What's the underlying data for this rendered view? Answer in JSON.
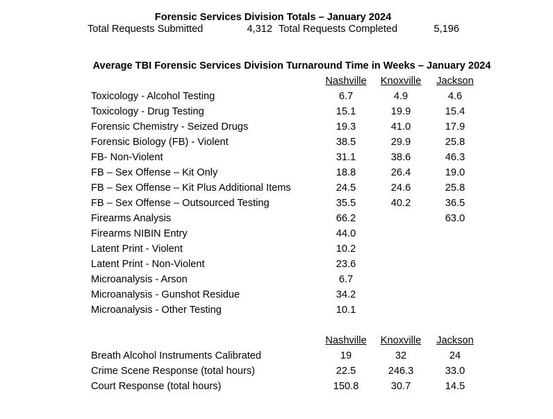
{
  "totals": {
    "title": "Forensic Services Division Totals – January 2024",
    "submitted_label": "Total Requests Submitted",
    "submitted_value": "4,312",
    "completed_label": "Total Requests Completed",
    "completed_value": "5,196"
  },
  "turnaround": {
    "title": "Average TBI Forensic Services Division Turnaround Time in Weeks – January 2024",
    "columns": [
      "Nashville",
      "Knoxville",
      "Jackson"
    ],
    "rows": [
      {
        "label": "Toxicology - Alcohol Testing",
        "values": [
          "6.7",
          "4.9",
          "4.6"
        ]
      },
      {
        "label": "Toxicology - Drug Testing",
        "values": [
          "15.1",
          "19.9",
          "15.4"
        ]
      },
      {
        "label": "Forensic Chemistry - Seized Drugs",
        "values": [
          "19.3",
          "41.0",
          "17.9"
        ]
      },
      {
        "label": "Forensic Biology (FB) - Violent",
        "values": [
          "38.5",
          "29.9",
          "25.8"
        ]
      },
      {
        "label": "FB- Non-Violent",
        "values": [
          "31.1",
          "38.6",
          "46.3"
        ]
      },
      {
        "label": "FB – Sex Offense – Kit Only",
        "values": [
          "18.8",
          "26.4",
          "19.0"
        ]
      },
      {
        "label": "FB – Sex Offense – Kit Plus Additional Items",
        "values": [
          "24.5",
          "24.6",
          "25.8"
        ]
      },
      {
        "label": "FB – Sex Offense – Outsourced Testing",
        "values": [
          "35.5",
          "40.2",
          "36.5"
        ]
      },
      {
        "label": "Firearms Analysis",
        "values": [
          "66.2",
          "",
          "63.0"
        ]
      },
      {
        "label": "Firearms NIBIN Entry",
        "values": [
          "44.0",
          "",
          ""
        ]
      },
      {
        "label": "Latent Print - Violent",
        "values": [
          "10.2",
          "",
          ""
        ]
      },
      {
        "label": "Latent Print - Non-Violent",
        "values": [
          "23.6",
          "",
          ""
        ]
      },
      {
        "label": "Microanalysis - Arson",
        "values": [
          "6.7",
          "",
          ""
        ]
      },
      {
        "label": "Microanalysis - Gunshot Residue",
        "values": [
          "34.2",
          "",
          ""
        ]
      },
      {
        "label": "Microanalysis - Other Testing",
        "values": [
          "10.1",
          "",
          ""
        ]
      }
    ]
  },
  "other": {
    "columns": [
      "Nashville",
      "Knoxville",
      "Jackson"
    ],
    "rows": [
      {
        "label": "Breath Alcohol Instruments Calibrated",
        "values": [
          "19",
          "32",
          "24"
        ]
      },
      {
        "label": "Crime Scene Response (total hours)",
        "values": [
          "22.5",
          "246.3",
          "33.0"
        ]
      },
      {
        "label": "Court Response (total hours)",
        "values": [
          "150.8",
          "30.7",
          "14.5"
        ]
      }
    ]
  }
}
